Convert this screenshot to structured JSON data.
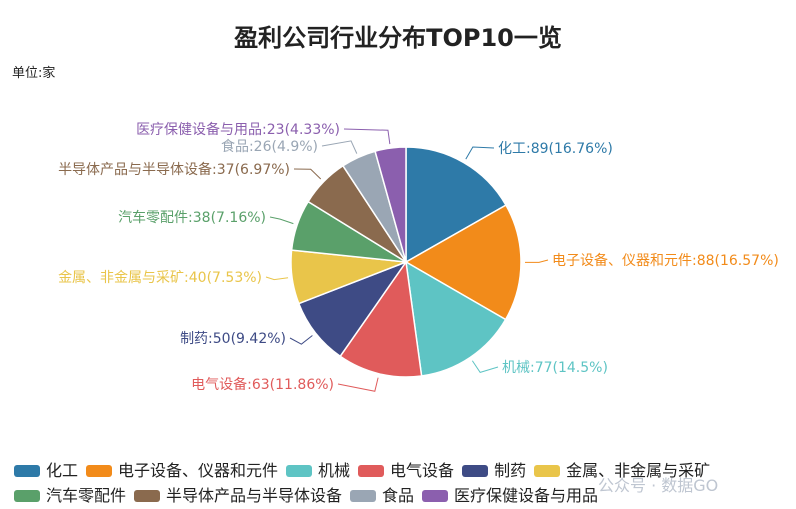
{
  "chart_data": {
    "type": "pie",
    "title": "盈利公司行业分布TOP10一览",
    "unit_label": "单位:家",
    "legend_position": "bottom",
    "slices": [
      {
        "label": "化工",
        "value": 89,
        "percent": "16.76%",
        "color": "#2e7aa8"
      },
      {
        "label": "电子设备、仪器和元件",
        "value": 88,
        "percent": "16.57%",
        "color": "#f28b1a"
      },
      {
        "label": "机械",
        "value": 77,
        "percent": "14.5%",
        "color": "#5ec4c4"
      },
      {
        "label": "电气设备",
        "value": 63,
        "percent": "11.86%",
        "color": "#e05b5b"
      },
      {
        "label": "制药",
        "value": 50,
        "percent": "9.42%",
        "color": "#3e4b85"
      },
      {
        "label": "金属、非金属与采矿",
        "value": 40,
        "percent": "7.53%",
        "color": "#e9c54a"
      },
      {
        "label": "汽车零配件",
        "value": 38,
        "percent": "7.16%",
        "color": "#5aa06a"
      },
      {
        "label": "半导体产品与半导体设备",
        "value": 37,
        "percent": "6.97%",
        "color": "#8a6a4e"
      },
      {
        "label": "食品",
        "value": 26,
        "percent": "4.9%",
        "color": "#9aa6b4"
      },
      {
        "label": "医疗保健设备与用品",
        "value": 23,
        "percent": "4.33%",
        "color": "#8b5fae"
      }
    ]
  },
  "watermark": "公众号 · 数据GO"
}
